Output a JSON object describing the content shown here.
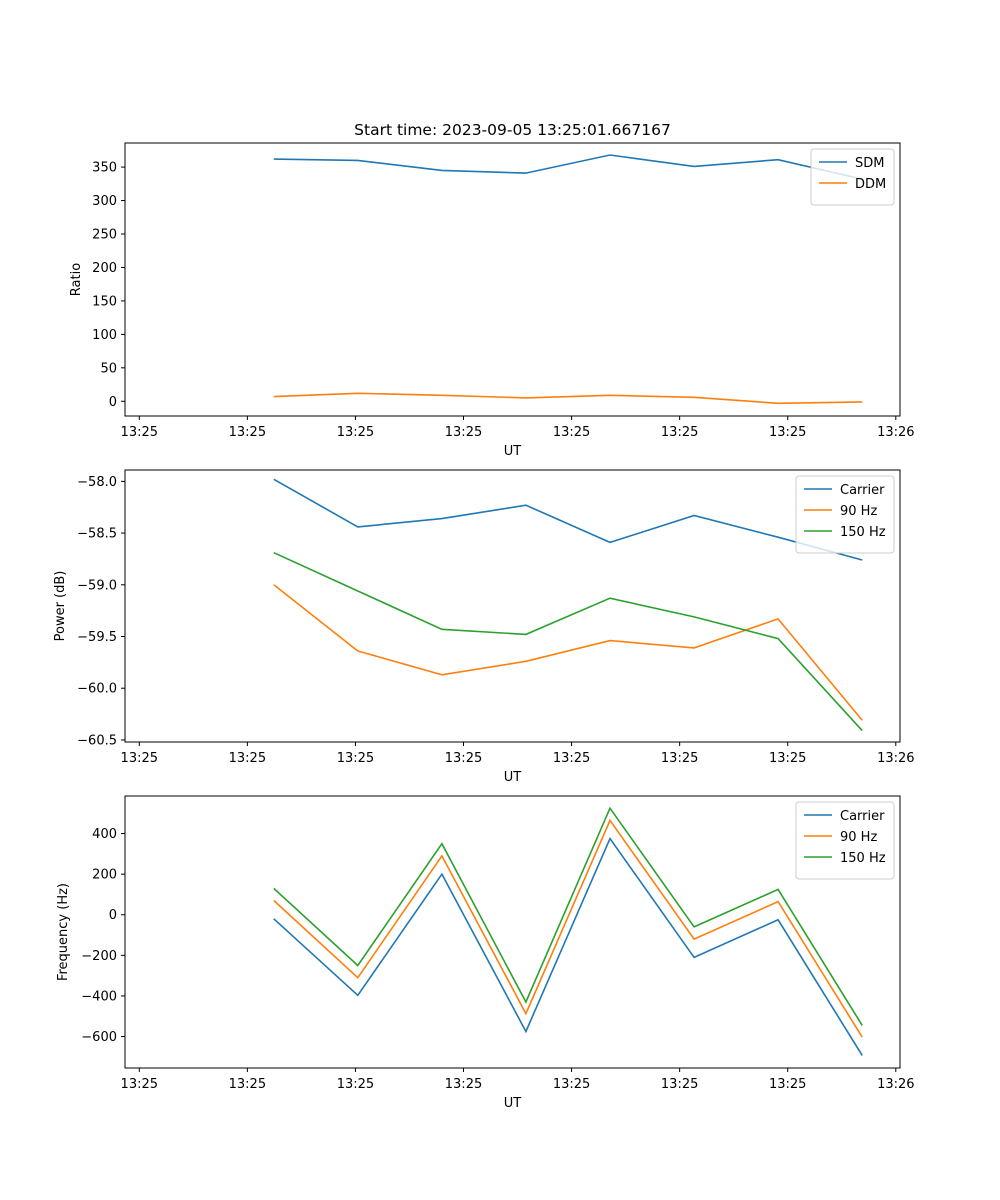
{
  "chart_data": [
    {
      "type": "line",
      "title": "Start time: 2023-09-05 13:25:01.667167",
      "xlabel": "UT",
      "ylabel": "Ratio",
      "x_tick_labels": [
        "13:25",
        "13:25",
        "13:25",
        "13:25",
        "13:25",
        "13:25",
        "13:25",
        "13:26"
      ],
      "x": [
        1,
        2,
        3,
        4,
        5,
        6,
        7,
        8
      ],
      "xlim": [
        -0.77,
        8.45
      ],
      "ylim": [
        -22,
        386
      ],
      "y_ticks": [
        0,
        50,
        100,
        150,
        200,
        250,
        300,
        350
      ],
      "legend_loc": "upper right",
      "series": [
        {
          "name": "SDM",
          "color": "#1f77b4",
          "values": [
            362,
            360,
            345,
            341,
            368,
            351,
            361,
            332
          ]
        },
        {
          "name": "DDM",
          "color": "#ff7f0e",
          "values": [
            7,
            12,
            9,
            5,
            9,
            6,
            -3,
            -1
          ]
        }
      ]
    },
    {
      "type": "line",
      "title": "",
      "xlabel": "UT",
      "ylabel": "Power (dB)",
      "x_tick_labels": [
        "13:25",
        "13:25",
        "13:25",
        "13:25",
        "13:25",
        "13:25",
        "13:25",
        "13:26"
      ],
      "x": [
        1,
        2,
        3,
        4,
        5,
        6,
        7,
        8
      ],
      "xlim": [
        -0.77,
        8.45
      ],
      "ylim": [
        -60.52,
        -57.89
      ],
      "y_ticks": [
        -58.0,
        -58.5,
        -59.0,
        -59.5,
        -60.0,
        -60.5
      ],
      "legend_loc": "upper right",
      "series": [
        {
          "name": "Carrier",
          "color": "#1f77b4",
          "values": [
            -57.98,
            -58.44,
            -58.36,
            -58.23,
            -58.59,
            -58.33,
            -58.54,
            -58.76
          ]
        },
        {
          "name": "90 Hz",
          "color": "#ff7f0e",
          "values": [
            -59.0,
            -59.64,
            -59.87,
            -59.74,
            -59.54,
            -59.61,
            -59.33,
            -60.31
          ]
        },
        {
          "name": "150 Hz",
          "color": "#2ca02c",
          "values": [
            -58.69,
            -59.06,
            -59.43,
            -59.48,
            -59.13,
            -59.31,
            -59.52,
            -60.41
          ]
        }
      ]
    },
    {
      "type": "line",
      "title": "",
      "xlabel": "UT",
      "ylabel": "Frequency (Hz)",
      "x_tick_labels": [
        "13:25",
        "13:25",
        "13:25",
        "13:25",
        "13:25",
        "13:25",
        "13:25",
        "13:26"
      ],
      "x": [
        1,
        2,
        3,
        4,
        5,
        6,
        7,
        8
      ],
      "xlim": [
        -0.77,
        8.45
      ],
      "ylim": [
        -755,
        585
      ],
      "y_ticks": [
        400,
        200,
        0,
        -200,
        -400,
        -600
      ],
      "legend_loc": "upper right",
      "series": [
        {
          "name": "Carrier",
          "color": "#1f77b4",
          "values": [
            -20,
            -397,
            200,
            -575,
            375,
            -210,
            -25,
            -693
          ]
        },
        {
          "name": "90 Hz",
          "color": "#ff7f0e",
          "values": [
            70,
            -310,
            290,
            -487,
            465,
            -120,
            65,
            -603
          ]
        },
        {
          "name": "150 Hz",
          "color": "#2ca02c",
          "values": [
            130,
            -250,
            350,
            -430,
            525,
            -60,
            125,
            -545
          ]
        }
      ]
    }
  ]
}
